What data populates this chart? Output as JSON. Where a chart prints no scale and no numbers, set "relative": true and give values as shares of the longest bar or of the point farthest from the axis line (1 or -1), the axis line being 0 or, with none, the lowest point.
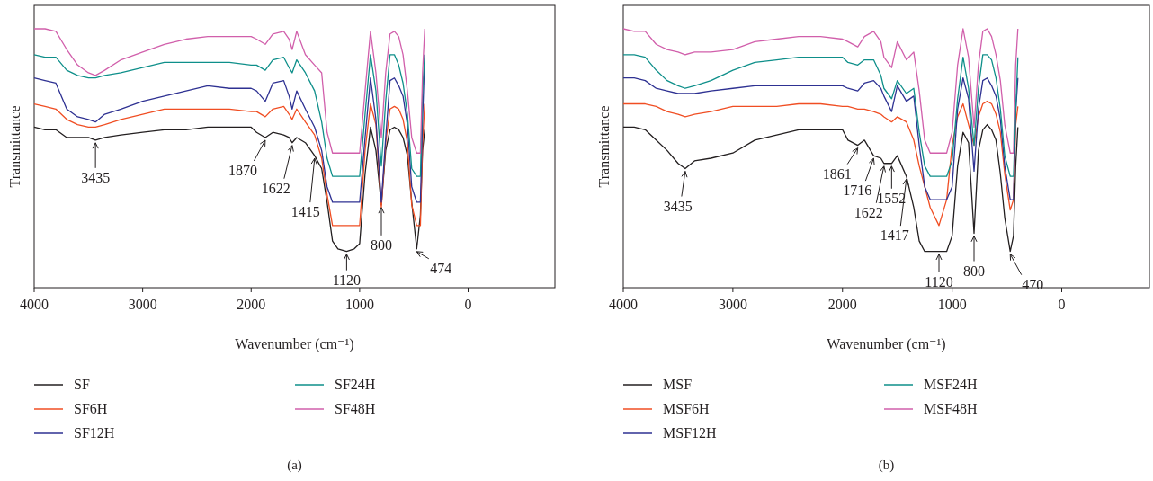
{
  "chart_data": [
    {
      "type": "line",
      "relative": true,
      "xlabel": "Wavenumber (cm⁻¹)",
      "ylabel": "Transmittance",
      "xlim": [
        4000,
        -800
      ],
      "xticks": [
        4000,
        3000,
        2000,
        1000,
        0
      ],
      "legend": "bottom",
      "x": [
        4000,
        3900,
        3800,
        3700,
        3600,
        3500,
        3435,
        3350,
        3200,
        3000,
        2800,
        2600,
        2400,
        2200,
        2000,
        1950,
        1870,
        1800,
        1700,
        1650,
        1622,
        1580,
        1500,
        1415,
        1350,
        1300,
        1250,
        1200,
        1120,
        1050,
        1000,
        950,
        900,
        850,
        800,
        760,
        720,
        680,
        640,
        600,
        560,
        520,
        474,
        440,
        420,
        400
      ],
      "series": [
        {
          "name": "SF",
          "color": "#231f20",
          "values": [
            0.62,
            0.61,
            0.61,
            0.58,
            0.58,
            0.58,
            0.57,
            0.58,
            0.59,
            0.6,
            0.61,
            0.61,
            0.62,
            0.62,
            0.62,
            0.6,
            0.58,
            0.6,
            0.59,
            0.58,
            0.56,
            0.58,
            0.56,
            0.51,
            0.46,
            0.33,
            0.18,
            0.15,
            0.14,
            0.15,
            0.17,
            0.44,
            0.62,
            0.53,
            0.32,
            0.53,
            0.61,
            0.62,
            0.61,
            0.58,
            0.51,
            0.33,
            0.15,
            0.28,
            0.53,
            0.61
          ]
        },
        {
          "name": "SF6H",
          "color": "#f04e23",
          "values": [
            0.71,
            0.7,
            0.69,
            0.65,
            0.63,
            0.62,
            0.62,
            0.63,
            0.65,
            0.67,
            0.69,
            0.69,
            0.69,
            0.69,
            0.68,
            0.68,
            0.66,
            0.69,
            0.7,
            0.67,
            0.65,
            0.69,
            0.64,
            0.59,
            0.5,
            0.36,
            0.24,
            0.24,
            0.24,
            0.24,
            0.24,
            0.53,
            0.71,
            0.63,
            0.31,
            0.56,
            0.69,
            0.7,
            0.69,
            0.65,
            0.56,
            0.32,
            0.24,
            0.24,
            0.56,
            0.71
          ]
        },
        {
          "name": "SF12H",
          "color": "#2e3192",
          "values": [
            0.81,
            0.8,
            0.79,
            0.69,
            0.66,
            0.65,
            0.64,
            0.67,
            0.69,
            0.72,
            0.74,
            0.76,
            0.78,
            0.77,
            0.77,
            0.76,
            0.72,
            0.79,
            0.8,
            0.74,
            0.69,
            0.76,
            0.69,
            0.62,
            0.53,
            0.39,
            0.33,
            0.33,
            0.33,
            0.33,
            0.33,
            0.58,
            0.81,
            0.65,
            0.33,
            0.58,
            0.8,
            0.81,
            0.78,
            0.74,
            0.63,
            0.39,
            0.33,
            0.33,
            0.65,
            0.9
          ]
        },
        {
          "name": "SF24H",
          "color": "#0e8f8a",
          "values": [
            0.9,
            0.89,
            0.89,
            0.84,
            0.82,
            0.81,
            0.81,
            0.82,
            0.83,
            0.85,
            0.87,
            0.87,
            0.87,
            0.87,
            0.86,
            0.86,
            0.84,
            0.88,
            0.89,
            0.85,
            0.83,
            0.88,
            0.83,
            0.76,
            0.64,
            0.5,
            0.43,
            0.43,
            0.43,
            0.43,
            0.43,
            0.67,
            0.9,
            0.76,
            0.47,
            0.72,
            0.9,
            0.9,
            0.86,
            0.79,
            0.67,
            0.46,
            0.43,
            0.43,
            0.76,
            0.9
          ]
        },
        {
          "name": "SF48H",
          "color": "#d15fab",
          "values": [
            1.0,
            1.0,
            0.99,
            0.92,
            0.86,
            0.83,
            0.82,
            0.84,
            0.88,
            0.91,
            0.94,
            0.96,
            0.97,
            0.97,
            0.97,
            0.96,
            0.94,
            0.98,
            0.99,
            0.96,
            0.92,
            0.99,
            0.9,
            0.86,
            0.83,
            0.6,
            0.52,
            0.52,
            0.52,
            0.52,
            0.52,
            0.76,
            0.99,
            0.83,
            0.58,
            0.83,
            0.98,
            0.99,
            0.97,
            0.9,
            0.76,
            0.58,
            0.52,
            0.52,
            0.83,
            1.0
          ]
        }
      ],
      "annotations": [
        {
          "text": "3435",
          "x": 3435,
          "y": 0.57
        },
        {
          "text": "1870",
          "x": 1870,
          "y": 0.58
        },
        {
          "text": "1622",
          "x": 1622,
          "y": 0.56
        },
        {
          "text": "1415",
          "x": 1415,
          "y": 0.51
        },
        {
          "text": "1120",
          "x": 1120,
          "y": 0.14
        },
        {
          "text": "800",
          "x": 800,
          "y": 0.32
        },
        {
          "text": "474",
          "x": 474,
          "y": 0.15
        },
        "(a)"
      ]
    },
    {
      "type": "line",
      "relative": true,
      "xlabel": "Wavenumber (cm⁻¹)",
      "ylabel": "Transmittance",
      "xlim": [
        4000,
        -800
      ],
      "xticks": [
        4000,
        3000,
        2000,
        1000,
        0
      ],
      "legend": "bottom",
      "x": [
        4000,
        3900,
        3800,
        3700,
        3600,
        3500,
        3435,
        3350,
        3200,
        3000,
        2800,
        2600,
        2400,
        2200,
        2000,
        1950,
        1861,
        1800,
        1716,
        1650,
        1622,
        1552,
        1500,
        1417,
        1350,
        1300,
        1250,
        1200,
        1120,
        1050,
        1000,
        950,
        900,
        850,
        800,
        760,
        720,
        680,
        640,
        600,
        560,
        520,
        470,
        440,
        420,
        400
      ],
      "series": [
        {
          "name": "MSF",
          "color": "#231f20",
          "values": [
            0.62,
            0.62,
            0.61,
            0.57,
            0.53,
            0.48,
            0.46,
            0.49,
            0.5,
            0.52,
            0.57,
            0.59,
            0.61,
            0.61,
            0.61,
            0.57,
            0.55,
            0.57,
            0.51,
            0.5,
            0.48,
            0.48,
            0.51,
            0.43,
            0.31,
            0.18,
            0.14,
            0.14,
            0.14,
            0.14,
            0.2,
            0.47,
            0.6,
            0.56,
            0.21,
            0.53,
            0.61,
            0.63,
            0.61,
            0.57,
            0.44,
            0.27,
            0.14,
            0.2,
            0.47,
            0.62
          ]
        },
        {
          "name": "MSF6H",
          "color": "#f04e23",
          "values": [
            0.71,
            0.71,
            0.71,
            0.7,
            0.68,
            0.67,
            0.66,
            0.67,
            0.68,
            0.7,
            0.7,
            0.7,
            0.71,
            0.71,
            0.7,
            0.7,
            0.69,
            0.69,
            0.68,
            0.67,
            0.66,
            0.64,
            0.66,
            0.64,
            0.57,
            0.47,
            0.39,
            0.31,
            0.24,
            0.34,
            0.55,
            0.66,
            0.71,
            0.63,
            0.55,
            0.66,
            0.71,
            0.72,
            0.71,
            0.67,
            0.6,
            0.44,
            0.3,
            0.34,
            0.63,
            0.7
          ]
        },
        {
          "name": "MSF12H",
          "color": "#2e3192",
          "values": [
            0.81,
            0.81,
            0.8,
            0.77,
            0.76,
            0.75,
            0.75,
            0.75,
            0.76,
            0.77,
            0.78,
            0.78,
            0.78,
            0.78,
            0.78,
            0.77,
            0.76,
            0.79,
            0.8,
            0.77,
            0.74,
            0.68,
            0.78,
            0.72,
            0.74,
            0.55,
            0.39,
            0.34,
            0.34,
            0.34,
            0.39,
            0.69,
            0.81,
            0.73,
            0.45,
            0.69,
            0.8,
            0.81,
            0.78,
            0.74,
            0.65,
            0.47,
            0.34,
            0.34,
            0.68,
            0.81
          ]
        },
        {
          "name": "MSF24H",
          "color": "#0e8f8a",
          "values": [
            0.9,
            0.9,
            0.89,
            0.84,
            0.8,
            0.78,
            0.77,
            0.78,
            0.8,
            0.84,
            0.87,
            0.88,
            0.89,
            0.89,
            0.89,
            0.87,
            0.86,
            0.88,
            0.88,
            0.82,
            0.77,
            0.73,
            0.8,
            0.75,
            0.77,
            0.6,
            0.47,
            0.43,
            0.43,
            0.43,
            0.49,
            0.73,
            0.89,
            0.77,
            0.55,
            0.77,
            0.9,
            0.9,
            0.88,
            0.81,
            0.69,
            0.51,
            0.43,
            0.43,
            0.69,
            0.89
          ]
        },
        {
          "name": "MSF48H",
          "color": "#d15fab",
          "values": [
            1.0,
            0.99,
            0.99,
            0.94,
            0.92,
            0.91,
            0.9,
            0.91,
            0.91,
            0.92,
            0.95,
            0.96,
            0.97,
            0.97,
            0.96,
            0.95,
            0.93,
            0.97,
            0.99,
            0.95,
            0.89,
            0.85,
            0.95,
            0.88,
            0.91,
            0.76,
            0.57,
            0.52,
            0.52,
            0.52,
            0.6,
            0.86,
            1.0,
            0.89,
            0.62,
            0.86,
            0.99,
            1.0,
            0.97,
            0.9,
            0.8,
            0.63,
            0.52,
            0.52,
            0.86,
            1.0
          ]
        }
      ],
      "annotations": [
        {
          "text": "3435",
          "x": 3435,
          "y": 0.46
        },
        {
          "text": "1861",
          "x": 1861,
          "y": 0.55
        },
        {
          "text": "1716",
          "x": 1716,
          "y": 0.51
        },
        {
          "text": "1622",
          "x": 1622,
          "y": 0.48
        },
        {
          "text": "1552",
          "x": 1552,
          "y": 0.48
        },
        {
          "text": "1417",
          "x": 1417,
          "y": 0.43
        },
        {
          "text": "1120",
          "x": 1120,
          "y": 0.14
        },
        {
          "text": "800",
          "x": 800,
          "y": 0.21
        },
        {
          "text": "470",
          "x": 470,
          "y": 0.14
        },
        "(b)"
      ]
    }
  ]
}
